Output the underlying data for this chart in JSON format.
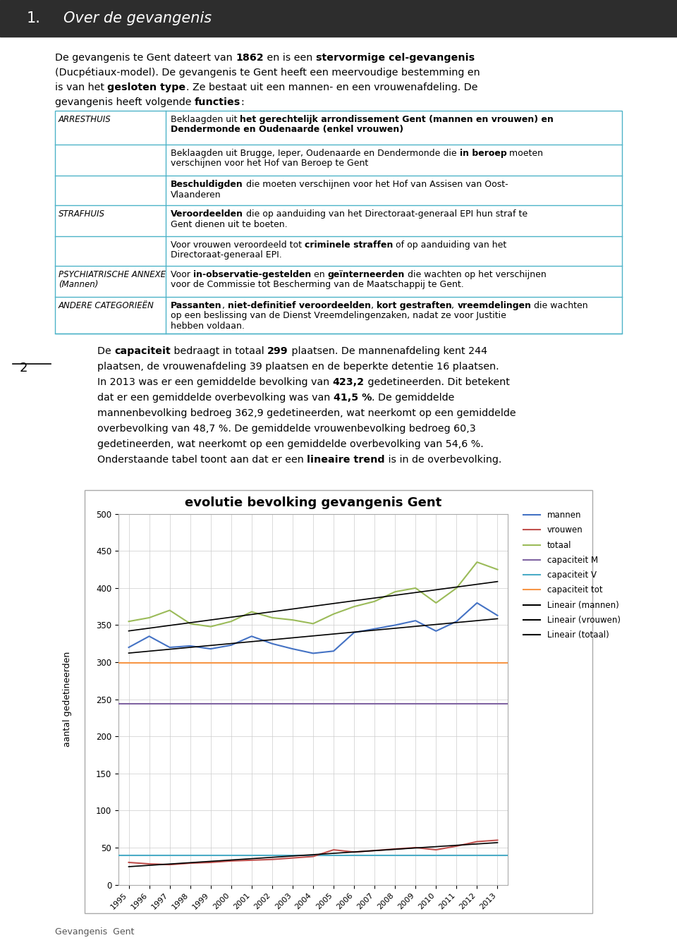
{
  "page_bg": "#ffffff",
  "header_bg": "#2d2d2d",
  "header_text_color": "#ffffff",
  "table_border_color": "#4db3c8",
  "years": [
    1995,
    1996,
    1997,
    1998,
    1999,
    2000,
    2001,
    2002,
    2003,
    2004,
    2005,
    2006,
    2007,
    2008,
    2009,
    2010,
    2011,
    2012,
    2013
  ],
  "mannen": [
    320,
    335,
    320,
    322,
    318,
    323,
    335,
    325,
    318,
    312,
    315,
    340,
    345,
    350,
    356,
    342,
    355,
    380,
    363
  ],
  "vrouwen": [
    30,
    28,
    27,
    29,
    30,
    32,
    33,
    34,
    36,
    38,
    47,
    44,
    46,
    48,
    50,
    47,
    52,
    58,
    60
  ],
  "totaal": [
    355,
    360,
    370,
    352,
    348,
    355,
    368,
    360,
    357,
    352,
    365,
    375,
    382,
    395,
    400,
    380,
    400,
    435,
    425
  ],
  "capaciteit_M": 244,
  "capaciteit_V": 39,
  "capaciteit_tot": 299,
  "line_colors": {
    "mannen": "#4472C4",
    "vrouwen": "#C0504D",
    "totaal": "#9BBB59",
    "capaciteit_M": "#8064A2",
    "capaciteit_V": "#4BACC6",
    "capaciteit_tot": "#F79646",
    "lineair": "#000000"
  },
  "chart_title": "evolutie bevolking gevangenis Gent",
  "chart_ylabel": "aantal gedetineerden",
  "chart_yticks": [
    0,
    50,
    100,
    150,
    200,
    250,
    300,
    350,
    400,
    450,
    500
  ],
  "footer_text": "Gevangenis  Gent"
}
